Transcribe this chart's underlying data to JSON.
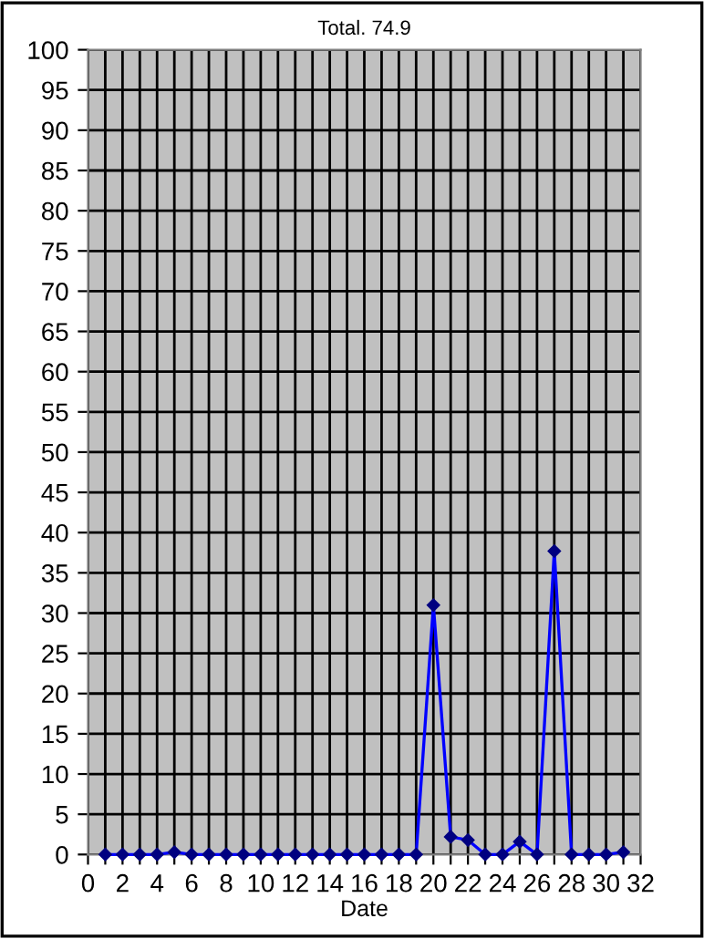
{
  "chart_data": {
    "type": "line",
    "title": "Total. 74.9",
    "xlabel": "Date",
    "x": [
      1,
      2,
      3,
      4,
      5,
      6,
      7,
      8,
      9,
      10,
      11,
      12,
      13,
      14,
      15,
      16,
      17,
      18,
      19,
      20,
      21,
      22,
      23,
      24,
      25,
      26,
      27,
      28,
      29,
      30,
      31
    ],
    "series": [
      {
        "color": "#0000ff",
        "values": [
          0,
          0,
          0,
          0,
          0.3,
          0,
          0,
          0,
          0,
          0,
          0,
          0,
          0,
          0,
          0,
          0,
          0,
          0,
          0,
          31,
          2.2,
          1.8,
          0,
          0,
          1.6,
          0,
          37.7,
          0,
          0,
          0,
          0.3
        ]
      }
    ],
    "xlim": [
      0,
      32
    ],
    "xticks": [
      0,
      {
        "value": 1,
        "label": null
      },
      2,
      {
        "value": 3,
        "label": null
      },
      4,
      {
        "value": 5,
        "label": null
      },
      6,
      {
        "value": 7,
        "label": null
      },
      8,
      {
        "value": 9,
        "label": null
      },
      10,
      {
        "value": 11,
        "label": null
      },
      12,
      {
        "value": 13,
        "label": null
      },
      14,
      {
        "value": 15,
        "label": null
      },
      16,
      {
        "value": 17,
        "label": null
      },
      18,
      {
        "value": 19,
        "label": null
      },
      20,
      {
        "value": 21,
        "label": null
      },
      22,
      {
        "value": 23,
        "label": null
      },
      24,
      {
        "value": 25,
        "label": null
      },
      26,
      {
        "value": 27,
        "label": null
      },
      28,
      {
        "value": 29,
        "label": null
      },
      30,
      {
        "value": 31,
        "label": null
      },
      32
    ],
    "ylim": [
      0,
      100
    ],
    "yticks": [
      0,
      5,
      10,
      15,
      20,
      25,
      30,
      35,
      40,
      45,
      50,
      55,
      60,
      65,
      70,
      75,
      80,
      85,
      90,
      95,
      100
    ],
    "grid": true,
    "marker": "diamond",
    "line_style": "solid",
    "legend": false
  }
}
